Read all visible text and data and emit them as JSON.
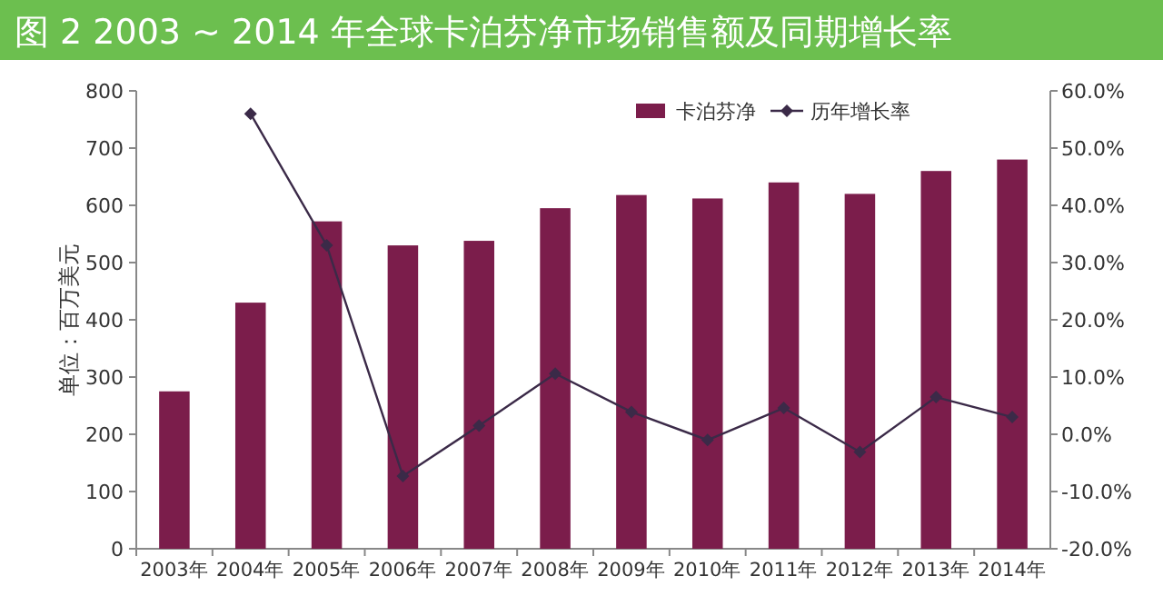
{
  "chart_data": {
    "type": "bar",
    "title": "图 2  2003 ~ 2014 年全球卡泊芬净市场销售额及同期增长率",
    "ylabel": "单位：百万美元",
    "categories": [
      "2003年",
      "2004年",
      "2005年",
      "2006年",
      "2007年",
      "2008年",
      "2009年",
      "2010年",
      "2011年",
      "2012年",
      "2013年",
      "2014年"
    ],
    "series": [
      {
        "name": "卡泊芬净",
        "color": "#7b1d4b",
        "values": [
          275,
          430,
          572,
          530,
          538,
          595,
          618,
          612,
          640,
          620,
          660,
          680
        ]
      },
      {
        "name": "历年增长率",
        "type": "line",
        "axis": "y2",
        "color": "#3b2a48",
        "marker": "diamond",
        "values": [
          null,
          56,
          33,
          -7.3,
          1.5,
          10.6,
          3.9,
          -1,
          4.6,
          -3.1,
          6.5,
          3
        ]
      }
    ],
    "ylim": [
      0,
      800
    ],
    "yticks": [
      0,
      100,
      200,
      300,
      400,
      500,
      600,
      700,
      800
    ],
    "y2lim": [
      -20,
      60
    ],
    "y2ticks": [
      {
        "value": -20,
        "label": "-20.0%"
      },
      {
        "value": -10,
        "label": "-10.0%"
      },
      {
        "value": 0,
        "label": "0.0%"
      },
      {
        "value": 10,
        "label": "10.0%"
      },
      {
        "value": 20,
        "label": "20.0%"
      },
      {
        "value": 30,
        "label": "30.0%"
      },
      {
        "value": 40,
        "label": "40.0%"
      },
      {
        "value": 50,
        "label": "50.0%"
      },
      {
        "value": 60,
        "label": "60.0%"
      }
    ],
    "legend": "top",
    "grid": false
  }
}
